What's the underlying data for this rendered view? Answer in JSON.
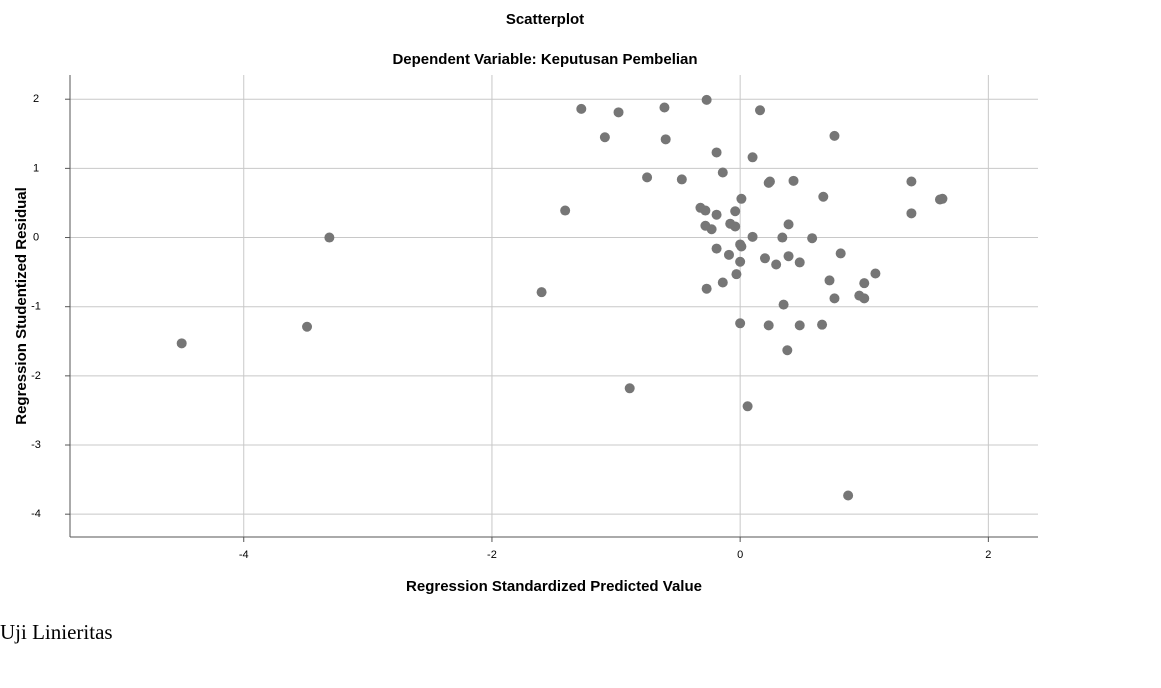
{
  "chart_data": {
    "type": "scatter",
    "title": "Scatterplot",
    "subtitle": "Dependent Variable: Keputusan Pembelian",
    "xlabel": "Regression Standardized Predicted Value",
    "ylabel": "Regression Studentized Residual",
    "color": "#767676",
    "grid": true,
    "xlim": [
      -5.4,
      2.4
    ],
    "ylim": [
      -4.33,
      2.35
    ],
    "xticks": [
      -4,
      -2,
      0,
      2
    ],
    "yticks": [
      -4,
      -3,
      -2,
      -1,
      0,
      1,
      2
    ],
    "x": [
      -1.28,
      -0.98,
      -0.61,
      -0.27,
      0.16,
      -1.09,
      -0.6,
      0.76,
      -0.19,
      -0.14,
      0.1,
      -0.75,
      -0.47,
      0.23,
      0.24,
      0.43,
      1.38,
      1.63,
      1.61,
      0.67,
      0.01,
      1.38,
      -1.41,
      -0.32,
      -0.28,
      -0.19,
      -0.04,
      -0.28,
      -0.23,
      -0.08,
      -0.04,
      0.39,
      -3.31,
      0.1,
      0.34,
      0.58,
      0.0,
      0.01,
      -0.19,
      -0.09,
      0.81,
      0.2,
      0.29,
      0.39,
      0.48,
      0.0,
      -0.03,
      1.09,
      0.72,
      1.0,
      -0.14,
      -0.27,
      -1.6,
      0.76,
      0.96,
      1.0,
      0.35,
      0.0,
      0.23,
      0.48,
      0.66,
      -3.49,
      0.38,
      -4.5,
      -0.89,
      0.06,
      0.87
    ],
    "y": [
      1.86,
      1.81,
      1.88,
      1.99,
      1.84,
      1.45,
      1.42,
      1.47,
      1.23,
      0.94,
      1.16,
      0.87,
      0.84,
      0.79,
      0.81,
      0.82,
      0.81,
      0.56,
      0.55,
      0.59,
      0.56,
      0.35,
      0.39,
      0.43,
      0.39,
      0.33,
      0.38,
      0.17,
      0.12,
      0.2,
      0.16,
      0.19,
      0.0,
      0.01,
      0.0,
      -0.01,
      -0.1,
      -0.13,
      -0.16,
      -0.25,
      -0.23,
      -0.3,
      -0.39,
      -0.27,
      -0.36,
      -0.35,
      -0.53,
      -0.52,
      -0.62,
      -0.66,
      -0.65,
      -0.74,
      -0.79,
      -0.88,
      -0.84,
      -0.88,
      -0.97,
      -1.24,
      -1.27,
      -1.27,
      -1.26,
      -1.29,
      -1.63,
      -1.53,
      -2.18,
      -2.44,
      -3.73
    ]
  },
  "document": {
    "text": "Uji Linieritas"
  }
}
